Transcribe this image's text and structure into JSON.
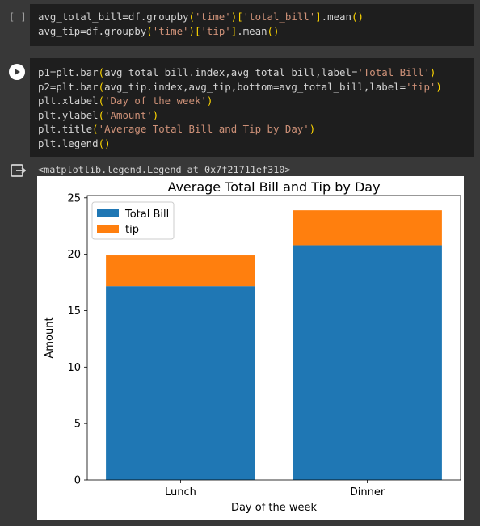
{
  "cell1": {
    "prompt": "[ ]",
    "lines": [
      [
        {
          "t": "avg_total_bill=df.groupby",
          "c": "plain"
        },
        {
          "t": "(",
          "c": "punc"
        },
        {
          "t": "'time'",
          "c": "str"
        },
        {
          "t": ")",
          "c": "punc"
        },
        {
          "t": "[",
          "c": "punc"
        },
        {
          "t": "'total_bill'",
          "c": "str"
        },
        {
          "t": "]",
          "c": "punc"
        },
        {
          "t": ".mean",
          "c": "plain"
        },
        {
          "t": "()",
          "c": "punc"
        }
      ],
      [
        {
          "t": "avg_tip=df.groupby",
          "c": "plain"
        },
        {
          "t": "(",
          "c": "punc"
        },
        {
          "t": "'time'",
          "c": "str"
        },
        {
          "t": ")",
          "c": "punc"
        },
        {
          "t": "[",
          "c": "punc"
        },
        {
          "t": "'tip'",
          "c": "str"
        },
        {
          "t": "]",
          "c": "punc"
        },
        {
          "t": ".mean",
          "c": "plain"
        },
        {
          "t": "()",
          "c": "punc"
        }
      ]
    ]
  },
  "cell2": {
    "lines": [
      [
        {
          "t": "p1=plt.bar",
          "c": "plain"
        },
        {
          "t": "(",
          "c": "punc"
        },
        {
          "t": "avg_total_bill.index,avg_total_bill,label=",
          "c": "plain"
        },
        {
          "t": "'Total Bill'",
          "c": "str"
        },
        {
          "t": ")",
          "c": "punc"
        }
      ],
      [
        {
          "t": "p2=plt.bar",
          "c": "plain"
        },
        {
          "t": "(",
          "c": "punc"
        },
        {
          "t": "avg_tip.index,avg_tip,bottom=avg_total_bill,label=",
          "c": "plain"
        },
        {
          "t": "'tip'",
          "c": "str"
        },
        {
          "t": ")",
          "c": "punc"
        }
      ],
      [
        {
          "t": "plt.xlabel",
          "c": "plain"
        },
        {
          "t": "(",
          "c": "punc"
        },
        {
          "t": "'Day of the week'",
          "c": "str"
        },
        {
          "t": ")",
          "c": "punc"
        }
      ],
      [
        {
          "t": "plt.ylabel",
          "c": "plain"
        },
        {
          "t": "(",
          "c": "punc"
        },
        {
          "t": "'Amount'",
          "c": "str"
        },
        {
          "t": ")",
          "c": "punc"
        }
      ],
      [
        {
          "t": "plt.title",
          "c": "plain"
        },
        {
          "t": "(",
          "c": "punc"
        },
        {
          "t": "'Average Total Bill and Tip by Day'",
          "c": "str"
        },
        {
          "t": ")",
          "c": "punc"
        }
      ],
      [
        {
          "t": "plt.legend",
          "c": "plain"
        },
        {
          "t": "()",
          "c": "punc"
        }
      ]
    ],
    "output_text": "<matplotlib.legend.Legend at 0x7f21711ef310>"
  },
  "colors": {
    "total_bill": "#1f77b4",
    "tip": "#ff7f0e"
  },
  "chart_data": {
    "type": "bar",
    "stacked": true,
    "title": "Average Total Bill and Tip by Day",
    "xlabel": "Day of the week",
    "ylabel": "Amount",
    "categories": [
      "Lunch",
      "Dinner"
    ],
    "series": [
      {
        "name": "Total Bill",
        "values": [
          17.17,
          20.8
        ]
      },
      {
        "name": "tip",
        "values": [
          2.73,
          3.1
        ]
      }
    ],
    "ylim": [
      0,
      25.2
    ],
    "yticks": [
      0,
      5,
      10,
      15,
      20,
      25
    ],
    "legend": "top-left",
    "grid": false
  }
}
